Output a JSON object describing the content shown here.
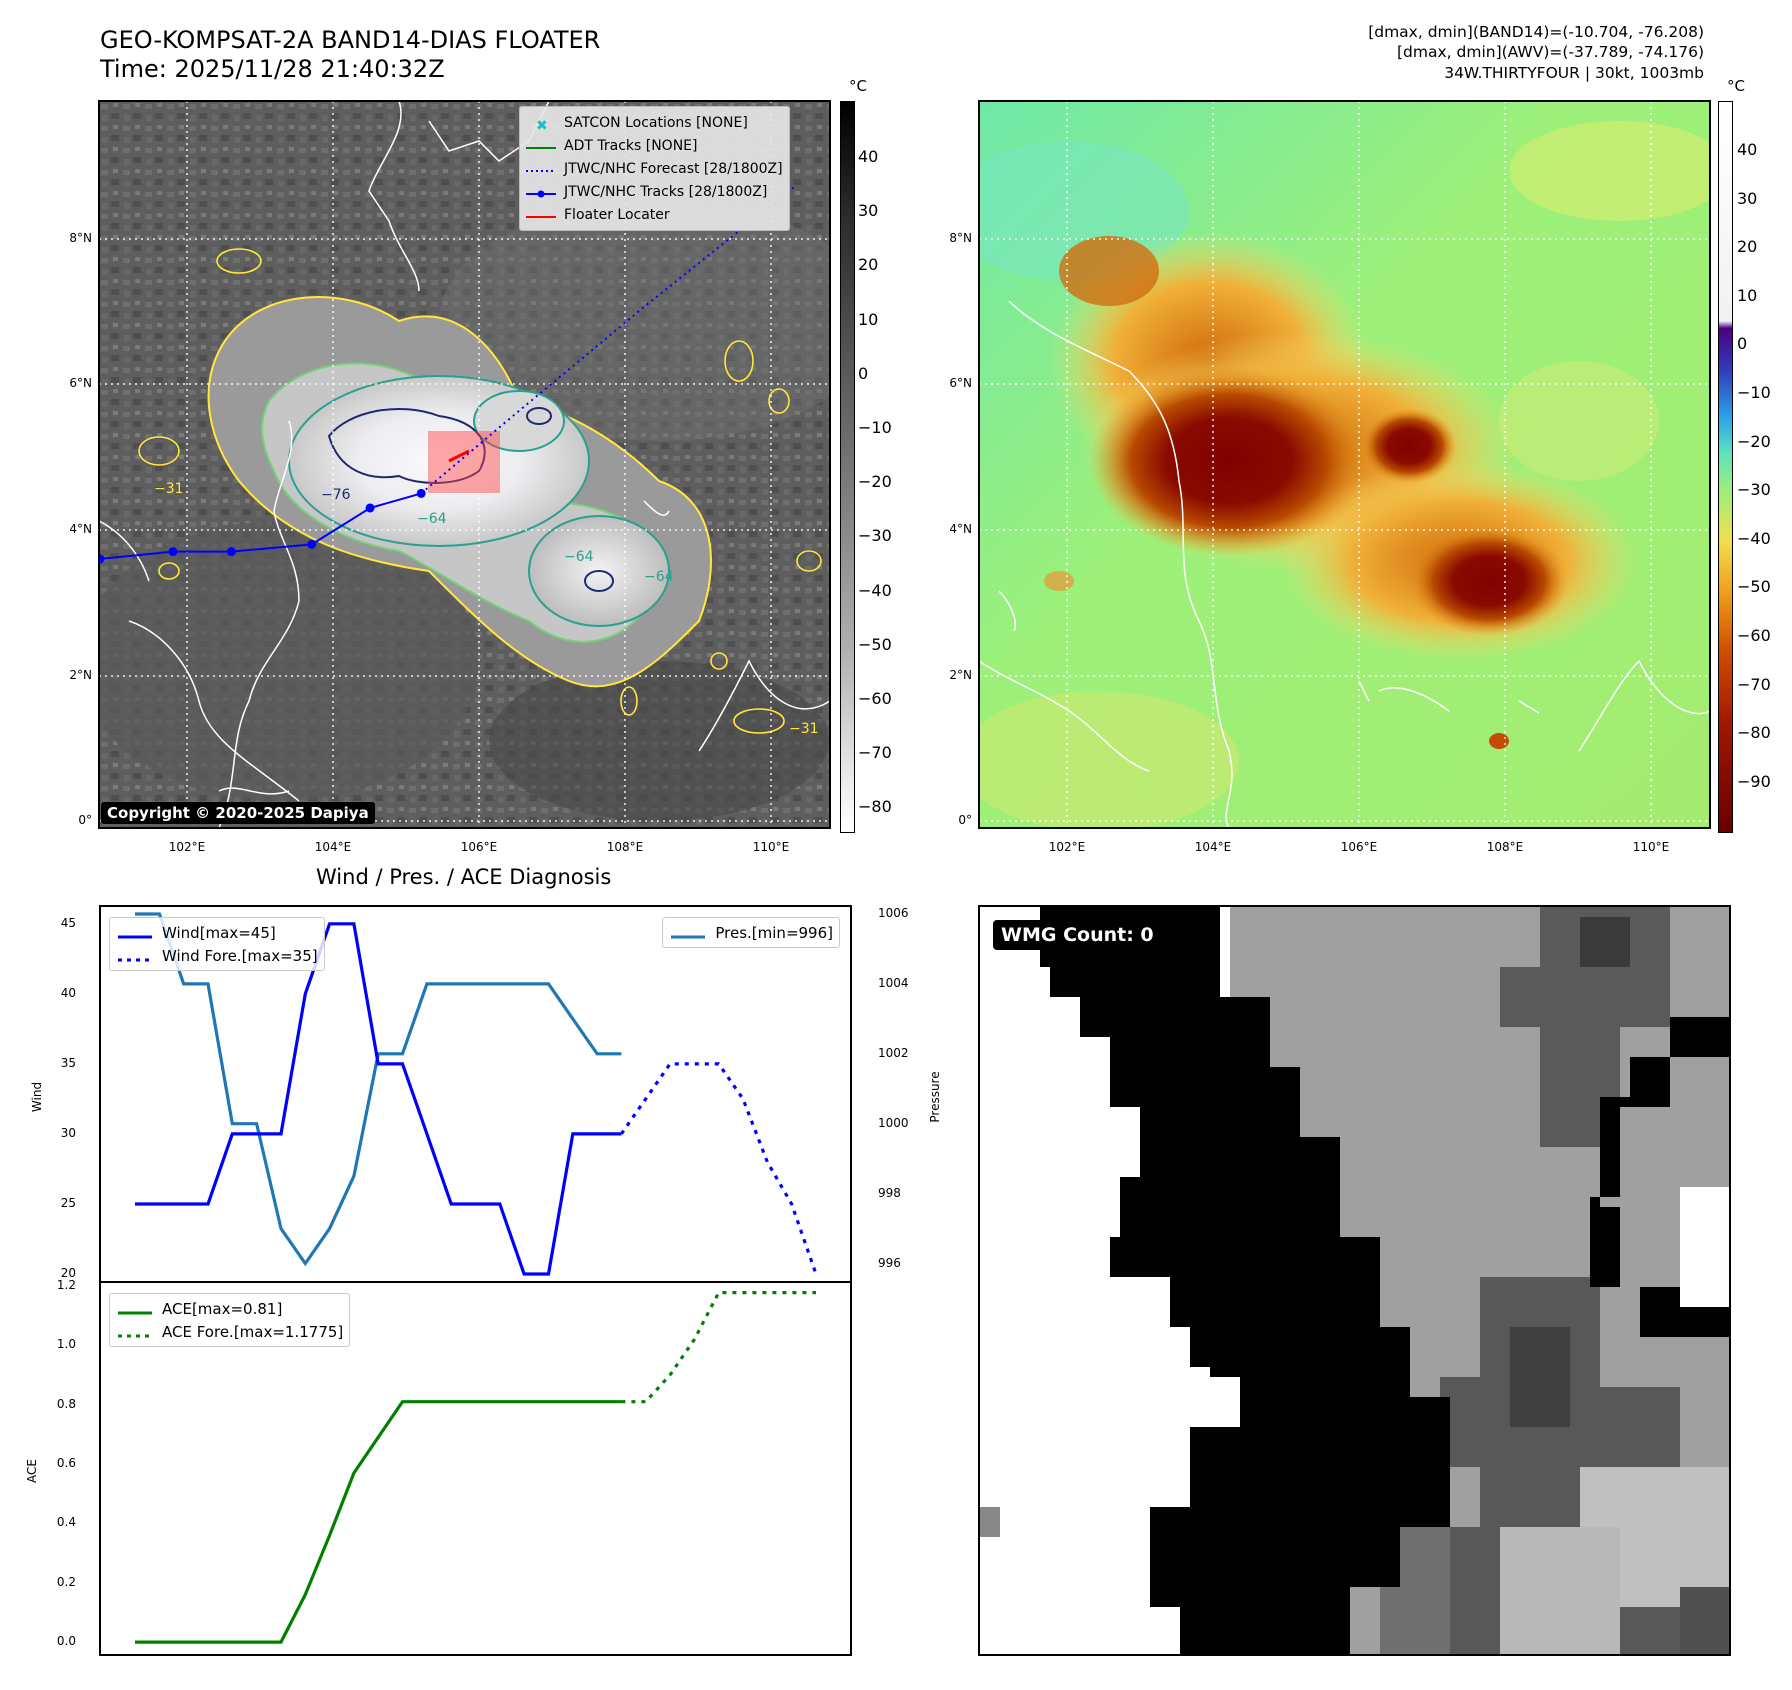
{
  "header": {
    "title_line1": "GEO-KOMPSAT-2A BAND14-DIAS FLOATER",
    "title_line2": "Time: 2025/11/28 21:40:32Z",
    "info_line1": "[dmax, dmin](BAND14)=(-10.704, -76.208)",
    "info_line2": "[dmax, dmin](AWV)=(-37.789, -74.176)",
    "info_line3": "34W.THIRTYFOUR | 30kt, 1003mb"
  },
  "ir_panel": {
    "unit": "°C",
    "colorbar_ticks": [
      "40",
      "30",
      "20",
      "10",
      "0",
      "−10",
      "−20",
      "−30",
      "−40",
      "−50",
      "−60",
      "−70",
      "−80"
    ],
    "lat_ticks": [
      "8°N",
      "6°N",
      "4°N",
      "2°N",
      "0°"
    ],
    "lon_ticks": [
      "102°E",
      "104°E",
      "106°E",
      "108°E",
      "110°E"
    ],
    "contour_labels": [
      "−76",
      "−64",
      "−64",
      "−64",
      "−31",
      "−31"
    ],
    "copyright": "Copyright © 2020-2025 Dapiya",
    "legend": [
      {
        "label": "SATCON Locations [NONE]",
        "marker": "x",
        "color": "#17becf"
      },
      {
        "label": "ADT Tracks [NONE]",
        "style": "solid",
        "color": "#008000"
      },
      {
        "label": "JTWC/NHC Forecast [28/1800Z]",
        "style": "dotted",
        "color": "#0000ff"
      },
      {
        "label": "JTWC/NHC Tracks [28/1800Z]",
        "style": "solid-dot",
        "color": "#0000ff"
      },
      {
        "label": "Floater Locater",
        "style": "solid",
        "color": "#ff0000"
      }
    ],
    "track_points": [
      [
        100.8,
        3.6
      ],
      [
        101.8,
        3.7
      ],
      [
        102.6,
        3.7
      ],
      [
        103.7,
        3.8
      ],
      [
        104.5,
        4.3
      ],
      [
        105.2,
        4.5
      ]
    ],
    "forecast_points": [
      [
        105.2,
        4.5
      ],
      [
        106.5,
        5.6
      ],
      [
        108.3,
        7.1
      ],
      [
        110.3,
        8.7
      ]
    ]
  },
  "wv_panel": {
    "unit": "°C",
    "colorbar_ticks": [
      "40",
      "30",
      "20",
      "10",
      "0",
      "−10",
      "−20",
      "−30",
      "−40",
      "−50",
      "−60",
      "−70",
      "−80",
      "−90"
    ],
    "lat_ticks": [
      "8°N",
      "6°N",
      "4°N",
      "2°N",
      "0°"
    ],
    "lon_ticks": [
      "102°E",
      "104°E",
      "106°E",
      "108°E",
      "110°E"
    ]
  },
  "diagnosis": {
    "title": "Wind / Pres. / ACE Diagnosis",
    "wind_axis_label": "Wind",
    "pressure_axis_label": "Pressure",
    "ace_axis_label": "ACE",
    "legend_wind": "Wind[max=45]",
    "legend_wind_fore": "Wind Fore.[max=35]",
    "legend_pres": "Pres.[min=996]",
    "legend_ace": "ACE[max=0.81]",
    "legend_ace_fore": "ACE Fore.[max=1.1775]",
    "wind_ticks": [
      "45",
      "40",
      "35",
      "30",
      "25",
      "20"
    ],
    "pres_ticks": [
      "1006",
      "1004",
      "1002",
      "1000",
      "998",
      "996"
    ],
    "ace_ticks": [
      "1.2",
      "1.0",
      "0.8",
      "0.6",
      "0.4",
      "0.2",
      "0.0"
    ]
  },
  "chart_data": [
    {
      "type": "line",
      "title": "Wind / Pres. / ACE Diagnosis",
      "ylabel": "Wind",
      "ylim": [
        19.5,
        46.2
      ],
      "x": [
        0,
        1,
        2,
        3,
        4,
        5,
        6,
        7,
        8,
        9,
        10,
        11,
        12,
        13,
        14,
        15,
        16,
        17,
        18,
        19,
        20
      ],
      "series": [
        {
          "name": "Wind[max=45]",
          "color": "#0000ff",
          "x": [
            0,
            1,
            2,
            3,
            4,
            5,
            6,
            7,
            8,
            9,
            10,
            11,
            12,
            13,
            14,
            15,
            16,
            17,
            18,
            19,
            20
          ],
          "values": [
            25,
            25,
            25,
            25,
            30,
            30,
            30,
            40,
            45,
            45,
            35,
            35,
            30,
            25,
            25,
            25,
            20,
            20,
            30,
            30,
            30
          ]
        },
        {
          "name": "Wind Fore.[max=35]",
          "color": "#0000ff",
          "style": "dotted",
          "x": [
            20,
            21,
            22,
            23,
            24,
            25,
            26,
            27,
            28
          ],
          "values": [
            30,
            32.5,
            35,
            35,
            35,
            32.5,
            28,
            25,
            20
          ]
        }
      ]
    },
    {
      "type": "line",
      "ylabel": "Pressure",
      "ylim": [
        995.5,
        1006.2
      ],
      "series": [
        {
          "name": "Pres.[min=996]",
          "color": "#1f77b4",
          "x": [
            0,
            1,
            2,
            3,
            4,
            5,
            6,
            7,
            8,
            9,
            10,
            11,
            12,
            13,
            14,
            15,
            16,
            17,
            18,
            19,
            20
          ],
          "values": [
            1006,
            1006,
            1004,
            1004,
            1000,
            1000,
            997,
            996,
            997,
            998.5,
            1002,
            1002,
            1004,
            1004,
            1004,
            1004,
            1004,
            1004,
            1003,
            1002,
            1002
          ]
        }
      ]
    },
    {
      "type": "line",
      "ylabel": "ACE",
      "ylim": [
        -0.04,
        1.21
      ],
      "series": [
        {
          "name": "ACE[max=0.81]",
          "color": "#008000",
          "x": [
            0,
            1,
            2,
            3,
            4,
            5,
            6,
            7,
            8,
            9,
            10,
            11,
            12,
            13,
            14,
            15,
            16,
            17,
            18,
            19,
            20
          ],
          "values": [
            0,
            0,
            0,
            0,
            0,
            0,
            0,
            0.16,
            0.36,
            0.57,
            0.69,
            0.81,
            0.81,
            0.81,
            0.81,
            0.81,
            0.81,
            0.81,
            0.81,
            0.81,
            0.81
          ]
        },
        {
          "name": "ACE Fore.[max=1.1775]",
          "color": "#008000",
          "style": "dotted",
          "x": [
            20,
            21,
            22,
            23,
            24,
            25,
            26,
            27,
            28
          ],
          "values": [
            0.81,
            0.81,
            0.9,
            1.02,
            1.1775,
            1.1775,
            1.1775,
            1.1775,
            1.1775
          ]
        }
      ]
    }
  ],
  "wmg_panel": {
    "label": "WMG Count: 0"
  }
}
